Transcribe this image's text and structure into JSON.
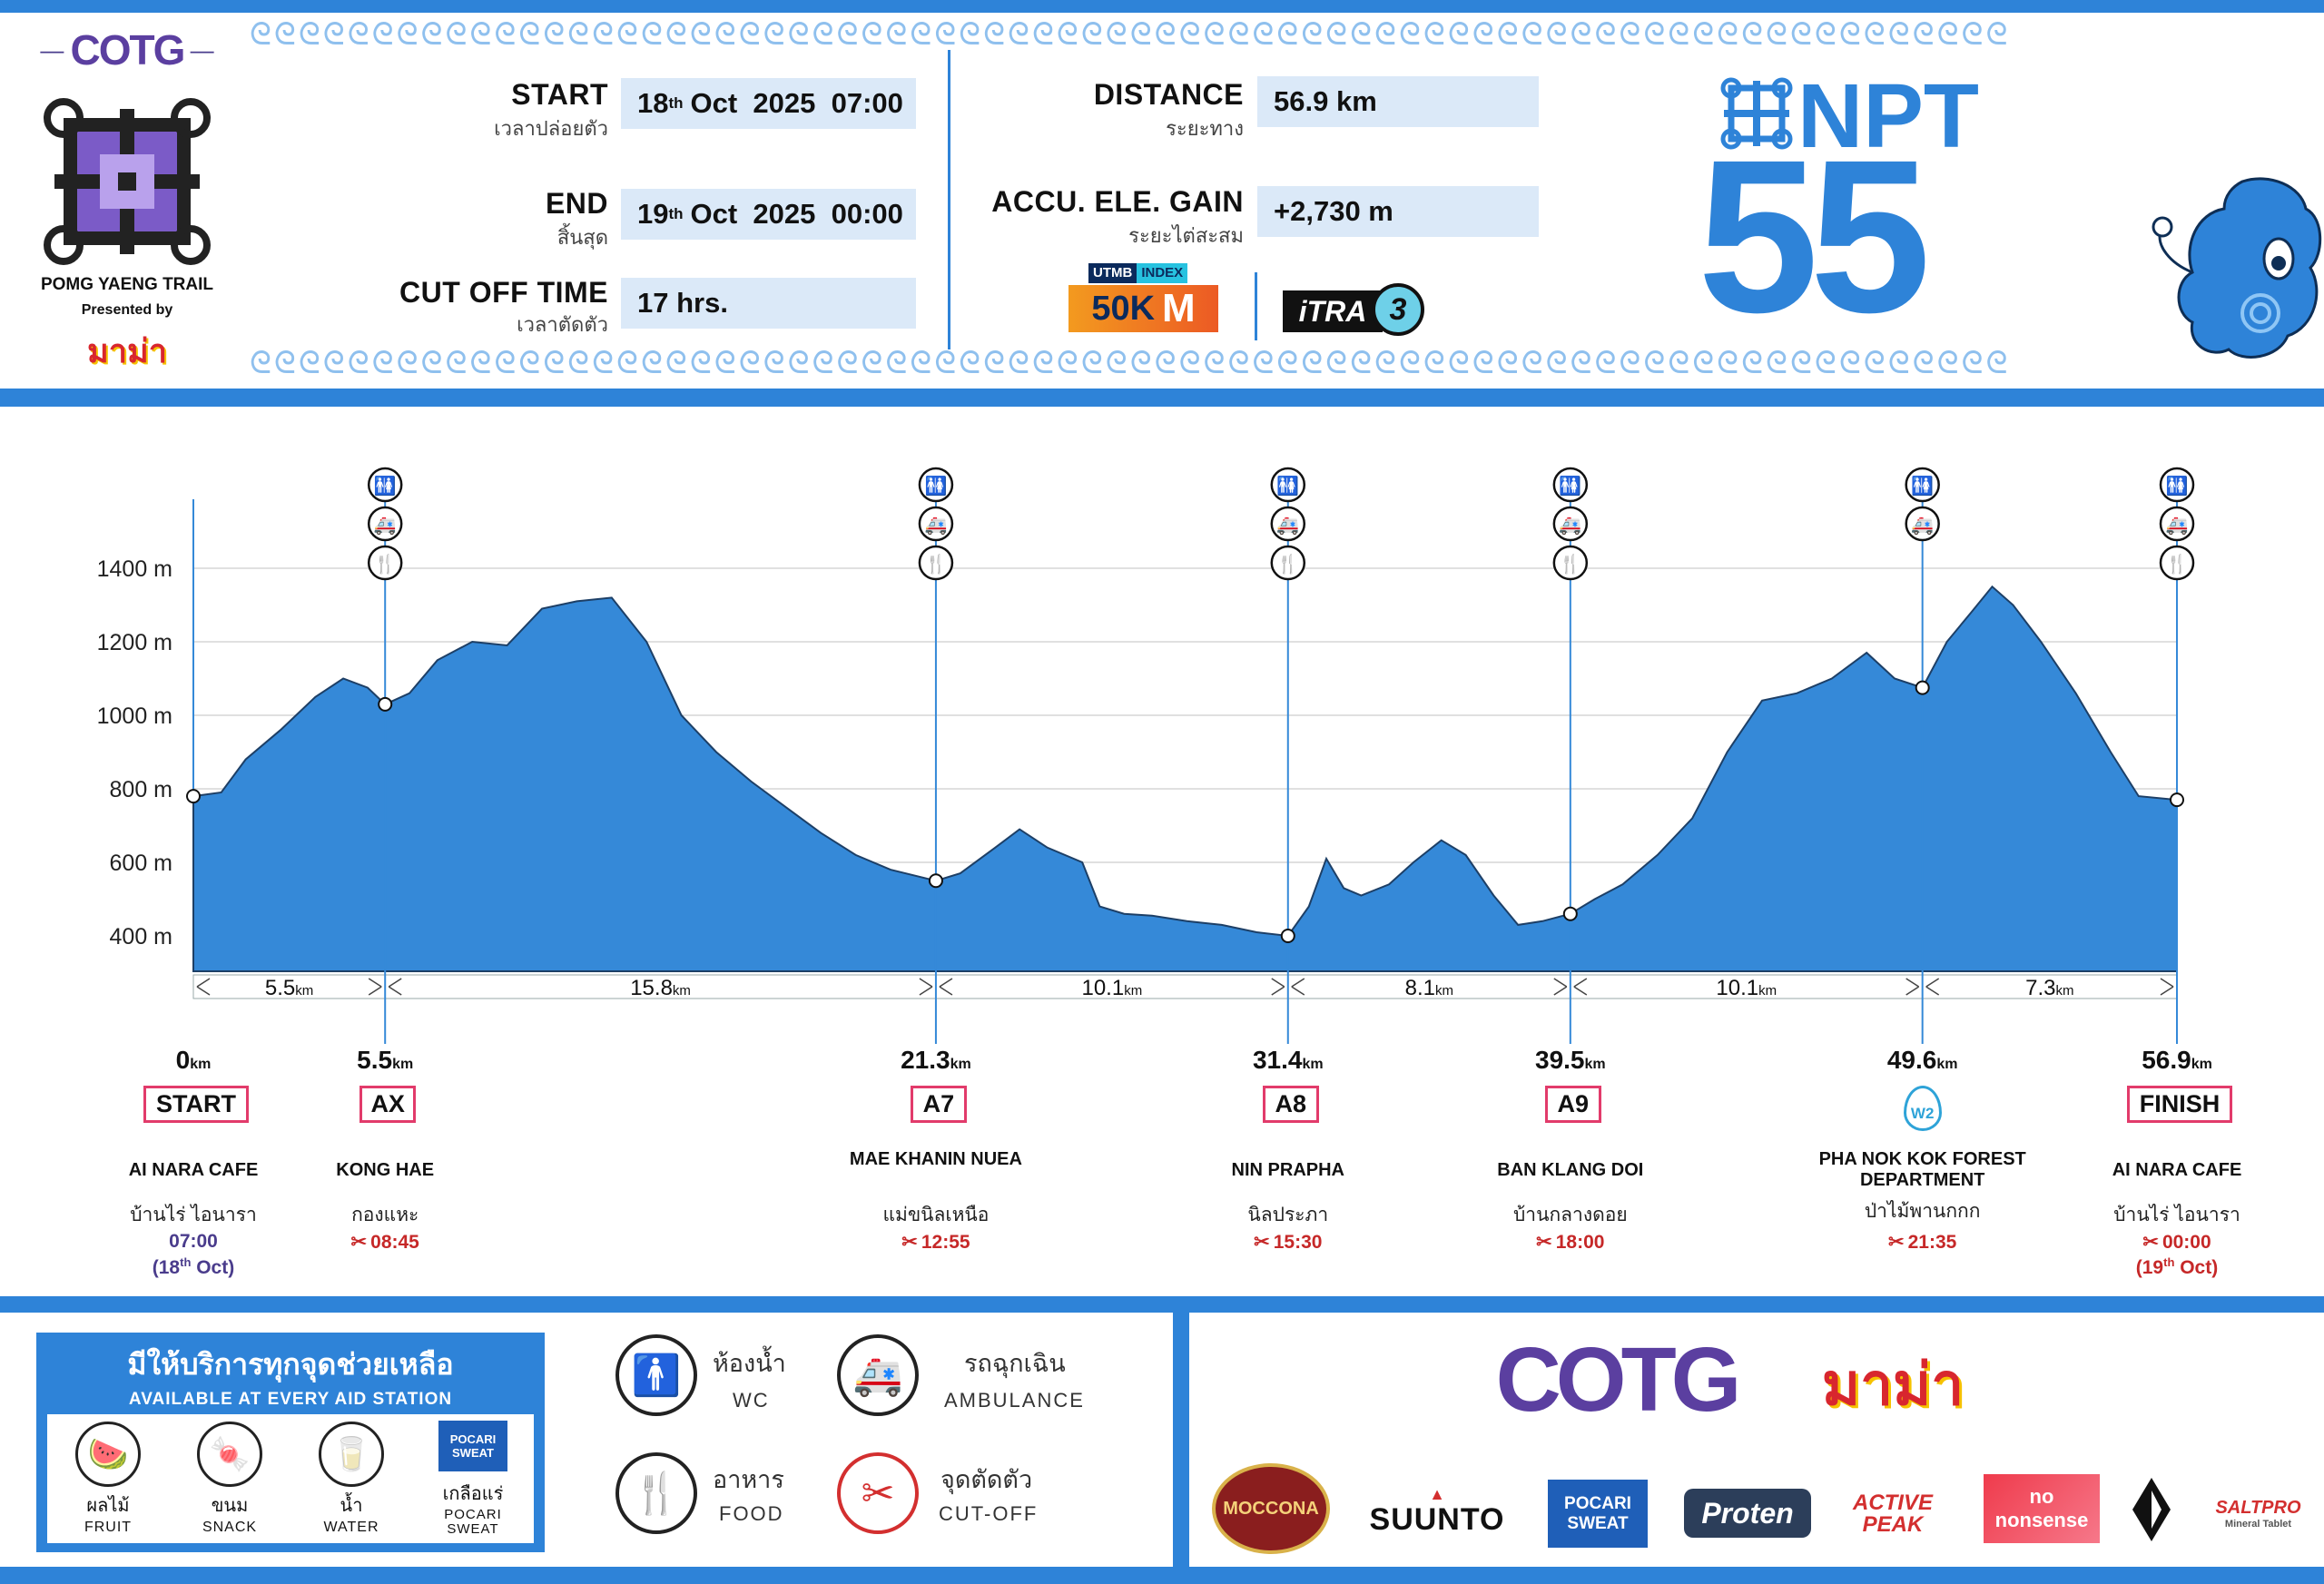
{
  "header": {
    "event_name": "POMG YAENG TRAIL",
    "presented_by": "Presented by",
    "presenter_logo": "มาม่า",
    "brand_logo": "COTG",
    "race_code": "NPT",
    "race_number": "55",
    "start_label": "START",
    "start_label_th": "เวลาปล่อยตัว",
    "start_day": "18",
    "start_sup": "th",
    "start_rest": "Oct  2025  07:00",
    "end_label": "END",
    "end_label_th": "สิ้นสุด",
    "end_day": "19",
    "end_sup": "th",
    "end_rest": "Oct  2025  00:00",
    "cutoff_label": "CUT OFF TIME",
    "cutoff_label_th": "เวลาตัดตัว",
    "cutoff_value": "17 hrs.",
    "distance_label": "DISTANCE",
    "distance_label_th": "ระยะทาง",
    "distance_value": "56.9 km",
    "gain_label": "ACCU. ELE. GAIN",
    "gain_label_th": "ระยะไต่สะสม",
    "gain_value": "+2,730 m",
    "utmb_top": "UTMB",
    "utmb_index": "INDEX",
    "utmb_value": "50K",
    "utmb_suffix": "M",
    "itra_label": "iTRA",
    "itra_points": "3",
    "swirl_pattern": "ᘓᘓᘓᘓᘓᘓᘓᘓᘓᘓᘓᘓᘓᘓᘓᘓᘓᘓᘓᘓᘓᘓᘓᘓᘓᘓᘓᘓᘓᘓᘓᘓᘓᘓᘓᘓᘓᘓᘓᘓᘓᘓᘓᘓᘓᘓᘓᘓᘓᘓᘓᘓᘓᘓᘓᘓᘓᘓᘓᘓᘓᘓᘓᘓᘓᘓᘓᘓᘓᘓᘓᘓ"
  },
  "chart_data": {
    "type": "area",
    "x_unit": "km",
    "y_unit": "m",
    "ylim": [
      300,
      1500
    ],
    "xlim": [
      0,
      56.9
    ],
    "yticks": [
      "400 m",
      "600 m",
      "800 m",
      "1000 m",
      "1200 m",
      "1400 m"
    ],
    "ytick_values": [
      400,
      600,
      800,
      1000,
      1200,
      1400
    ],
    "fill_color": "#3589d8",
    "profile_km": [
      0,
      0.8,
      1.5,
      2.5,
      3.5,
      4.3,
      5.0,
      5.5,
      6.2,
      7.0,
      8.0,
      9.0,
      10.0,
      11.0,
      12.0,
      13.0,
      14.0,
      15.0,
      16.0,
      17.0,
      18.0,
      19.0,
      20.0,
      21.3,
      22.0,
      23.0,
      23.7,
      24.5,
      25.5,
      26.0,
      26.7,
      27.5,
      28.5,
      29.5,
      30.5,
      31.4,
      32.0,
      32.5,
      33.0,
      33.5,
      34.3,
      35.0,
      35.8,
      36.5,
      37.3,
      38.0,
      38.7,
      39.5,
      40.2,
      41.0,
      42.0,
      43.0,
      44.0,
      45.0,
      46.0,
      47.0,
      48.0,
      48.8,
      49.6,
      50.3,
      51.0,
      51.6,
      52.2,
      53.0,
      54.0,
      55.0,
      55.8,
      56.9
    ],
    "profile_elev": [
      780,
      790,
      880,
      960,
      1050,
      1100,
      1075,
      1030,
      1060,
      1150,
      1200,
      1190,
      1290,
      1310,
      1320,
      1200,
      1000,
      900,
      820,
      750,
      680,
      620,
      580,
      550,
      570,
      640,
      690,
      640,
      600,
      480,
      460,
      455,
      440,
      430,
      410,
      400,
      480,
      610,
      530,
      510,
      540,
      600,
      660,
      620,
      510,
      430,
      440,
      460,
      500,
      540,
      620,
      720,
      900,
      1040,
      1060,
      1100,
      1170,
      1100,
      1075,
      1200,
      1280,
      1350,
      1300,
      1200,
      1060,
      900,
      780,
      770
    ]
  },
  "segments": [
    {
      "dist": "5.5",
      "unit": "km",
      "from": 0,
      "to": 5.5
    },
    {
      "dist": "15.8",
      "unit": "km",
      "from": 5.5,
      "to": 21.3
    },
    {
      "dist": "10.1",
      "unit": "km",
      "from": 21.3,
      "to": 31.4
    },
    {
      "dist": "8.1",
      "unit": "km",
      "from": 31.4,
      "to": 39.5
    },
    {
      "dist": "10.1",
      "unit": "km",
      "from": 39.5,
      "to": 49.6
    },
    {
      "dist": "7.3",
      "unit": "km",
      "from": 49.6,
      "to": 56.9
    }
  ],
  "stations": [
    {
      "km": 0,
      "km_label": "0",
      "code": "START",
      "name": "AI NARA CAFE",
      "name_th": "บ้านไร่  ไอนารา",
      "time": "07:00",
      "time_note": "(18",
      "time_sup": "th",
      "time_note_end": " Oct)",
      "elev": 780,
      "kind": "start",
      "icons": []
    },
    {
      "km": 5.5,
      "km_label": "5.5",
      "code": "AX",
      "name": "KONG HAE",
      "name_th": "กองแหะ",
      "time": "08:45",
      "elev": 1030,
      "kind": "cutoff",
      "icons": [
        "wc",
        "ambulance",
        "food"
      ]
    },
    {
      "km": 21.3,
      "km_label": "21.3",
      "code": "A7",
      "name": "MAE KHANIN NUEA",
      "name_th": "แม่ขนิลเหนือ",
      "time": "12:55",
      "elev": 550,
      "kind": "cutoff",
      "icons": [
        "wc",
        "ambulance",
        "food"
      ]
    },
    {
      "km": 31.4,
      "km_label": "31.4",
      "code": "A8",
      "name": "NIN PRAPHA",
      "name_th": "นิลประภา",
      "time": "15:30",
      "elev": 400,
      "kind": "cutoff",
      "icons": [
        "wc",
        "ambulance",
        "food"
      ]
    },
    {
      "km": 39.5,
      "km_label": "39.5",
      "code": "A9",
      "name": "BAN KLANG DOI",
      "name_th": "บ้านกลางดอย",
      "time": "18:00",
      "elev": 460,
      "kind": "cutoff",
      "icons": [
        "wc",
        "ambulance",
        "food"
      ]
    },
    {
      "km": 49.6,
      "km_label": "49.6",
      "code": "W2",
      "name": "PHA NOK KOK FOREST DEPARTMENT",
      "name_th": "ป่าไม้พานกกก",
      "time": "21:35",
      "elev": 1075,
      "kind": "water",
      "icons": [
        "wc",
        "ambulance"
      ]
    },
    {
      "km": 56.9,
      "km_label": "56.9",
      "code": "FINISH",
      "name": "AI NARA CAFE",
      "name_th": "บ้านไร่  ไอนารา",
      "time": "00:00",
      "time_note": "(19",
      "time_sup": "th",
      "time_note_end": " Oct)",
      "elev": 770,
      "kind": "finish",
      "icons": [
        "wc",
        "ambulance",
        "food"
      ]
    }
  ],
  "legend": {
    "aid_title_th": "มีให้บริการทุกจุดช่วยเหลือ",
    "aid_title_en": "AVAILABLE AT EVERY AID STATION",
    "aid_items": [
      {
        "th": "ผลไม้",
        "en": "FRUIT",
        "icon": "watermelon-icon",
        "glyph": "🍉"
      },
      {
        "th": "ขนม",
        "en": "SNACK",
        "icon": "candy-icon",
        "glyph": "🍬"
      },
      {
        "th": "น้ำ",
        "en": "WATER",
        "icon": "water-glass-icon",
        "glyph": "🥛"
      },
      {
        "th": "เกลือแร่",
        "en": "POCARI SWEAT",
        "icon": "pocari-icon",
        "glyph": "POCARI SWEAT"
      }
    ],
    "wc_th": "ห้องน้ำ",
    "wc_en": "WC",
    "amb_th": "รถฉุกเฉิน",
    "amb_en": "AMBULANCE",
    "food_th": "อาหาร",
    "food_en": "FOOD",
    "cut_th": "จุดตัดตัว",
    "cut_en": "CUT-OFF"
  },
  "sponsors": {
    "main1": "COTG",
    "main2": "มาม่า",
    "moccona": "MOCCONA",
    "suunto": "SUUNTO",
    "pocari": "POCARI SWEAT",
    "proten": "Proten",
    "activepeak": "ACTIVE PEAK",
    "nononsense": "no nonsense",
    "saltpro": "SALTPRO",
    "saltpro_sub": "Mineral Tablet"
  },
  "colors": {
    "blue": "#2e83d8",
    "light_blue": "#dbe9f8",
    "pink": "#e23b6b",
    "red": "#c62828",
    "purple": "#4a3c8c"
  }
}
